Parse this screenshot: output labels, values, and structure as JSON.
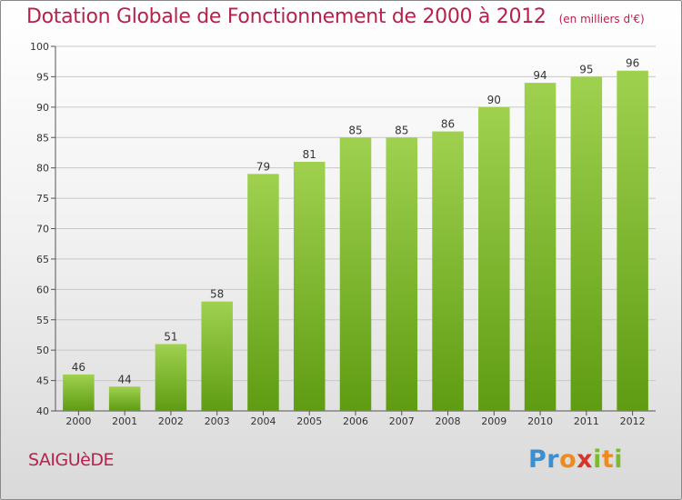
{
  "header": {
    "title": "Dotation Globale de Fonctionnement de 2000 à 2012",
    "unit": "(en milliers d'€)"
  },
  "footer": {
    "commune": "SAIGUèDE",
    "logo_text": "Proxiti"
  },
  "colors": {
    "title": "#b5224b",
    "bar_top": "#9fd14f",
    "bar_bottom": "#5f9c12",
    "grid": "#c8c8c8"
  },
  "chart_data": {
    "type": "bar",
    "title": "Dotation Globale de Fonctionnement de 2000 à 2012",
    "subtitle": "(en milliers d'€)",
    "categories": [
      "2000",
      "2001",
      "2002",
      "2003",
      "2004",
      "2005",
      "2006",
      "2007",
      "2008",
      "2009",
      "2010",
      "2011",
      "2012"
    ],
    "values": [
      46,
      44,
      51,
      58,
      79,
      81,
      85,
      85,
      86,
      90,
      94,
      95,
      96
    ],
    "xlabel": "",
    "ylabel": "",
    "ylim": [
      40,
      100
    ],
    "yticks": [
      40,
      45,
      50,
      55,
      60,
      65,
      70,
      75,
      80,
      85,
      90,
      95,
      100
    ],
    "grid": true,
    "legend": "none"
  }
}
